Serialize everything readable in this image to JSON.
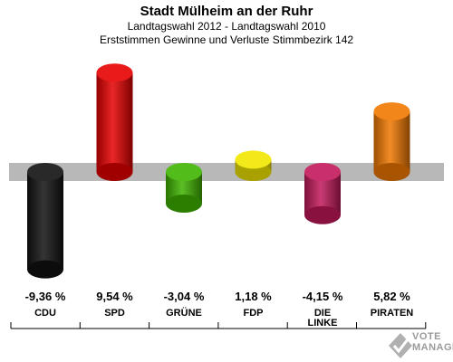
{
  "header": {
    "title": "Stadt Mülheim an der Ruhr",
    "subtitle1": "Landtagswahl 2012 - Landtagswahl 2010",
    "subtitle2": "Erststimmen Gewinne und Verluste Stimmbezirk 142"
  },
  "chart_data": {
    "type": "bar",
    "title": "Stadt Mülheim an der Ruhr",
    "subtitle": [
      "Landtagswahl 2012 - Landtagswahl 2010",
      "Erststimmen Gewinne und Verluste Stimmbezirk 142"
    ],
    "categories": [
      [
        "CDU"
      ],
      [
        "SPD"
      ],
      [
        "GRÜNE"
      ],
      [
        "FDP"
      ],
      [
        "DIE",
        "LINKE"
      ],
      [
        "PIRATEN"
      ]
    ],
    "values": [
      -9.36,
      9.54,
      -3.04,
      1.18,
      -4.15,
      5.82
    ],
    "value_labels": [
      "-9,36 %",
      "9,54 %",
      "-3,04 %",
      "1,18 %",
      "-4,15 %",
      "5,82 %"
    ],
    "colors": [
      "#111111",
      "#e50000",
      "#3fb400",
      "#f2e600",
      "#c2185b",
      "#f07800"
    ],
    "unit": "%",
    "grid": false,
    "legend": "none"
  },
  "logo": {
    "line1": "VOTE",
    "line2": "MANAGER"
  }
}
